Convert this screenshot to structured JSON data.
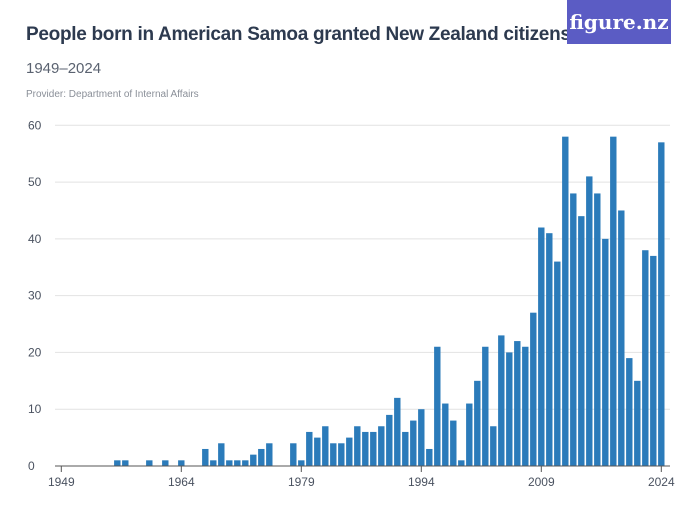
{
  "header": {
    "title": "People born in American Samoa granted New Zealand citizenship",
    "subtitle": "1949–2024",
    "provider": "Provider: Department of Internal Affairs",
    "logo": "figure.nz",
    "logo_color": "#5b5cc4"
  },
  "chart_data": {
    "type": "bar",
    "title": "People born in American Samoa granted New Zealand citizenship",
    "subtitle": "1949–2024",
    "xlabel": "",
    "ylabel": "",
    "ylim": [
      0,
      60
    ],
    "y_ticks": [
      0,
      10,
      20,
      30,
      40,
      50,
      60
    ],
    "x_ticks": [
      1949,
      1964,
      1979,
      1994,
      2009,
      2024
    ],
    "grid": true,
    "bar_color": "#2b7bba",
    "x": [
      1949,
      1950,
      1951,
      1952,
      1953,
      1954,
      1955,
      1956,
      1957,
      1958,
      1959,
      1960,
      1961,
      1962,
      1963,
      1964,
      1965,
      1966,
      1967,
      1968,
      1969,
      1970,
      1971,
      1972,
      1973,
      1974,
      1975,
      1976,
      1977,
      1978,
      1979,
      1980,
      1981,
      1982,
      1983,
      1984,
      1985,
      1986,
      1987,
      1988,
      1989,
      1990,
      1991,
      1992,
      1993,
      1994,
      1995,
      1996,
      1997,
      1998,
      1999,
      2000,
      2001,
      2002,
      2003,
      2004,
      2005,
      2006,
      2007,
      2008,
      2009,
      2010,
      2011,
      2012,
      2013,
      2014,
      2015,
      2016,
      2017,
      2018,
      2019,
      2020,
      2021,
      2022,
      2023,
      2024
    ],
    "values": [
      0,
      0,
      0,
      0,
      0,
      0,
      0,
      1,
      1,
      0,
      0,
      1,
      0,
      1,
      0,
      1,
      0,
      0,
      3,
      1,
      4,
      1,
      1,
      1,
      2,
      3,
      4,
      0,
      0,
      4,
      1,
      6,
      5,
      7,
      4,
      4,
      5,
      7,
      6,
      6,
      7,
      9,
      12,
      6,
      8,
      10,
      3,
      21,
      11,
      8,
      1,
      11,
      15,
      21,
      7,
      23,
      20,
      22,
      21,
      27,
      42,
      41,
      36,
      58,
      48,
      44,
      51,
      48,
      40,
      58,
      45,
      19,
      15,
      38,
      37,
      57
    ]
  }
}
